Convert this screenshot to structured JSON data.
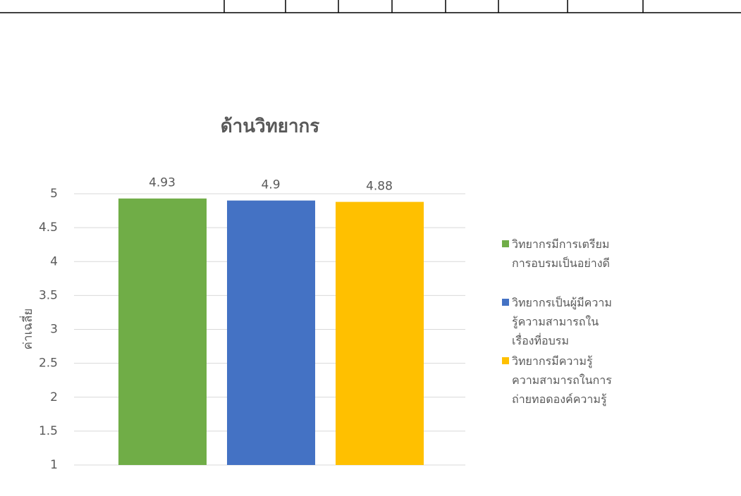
{
  "chart_data": {
    "type": "bar",
    "title": "ด้านวิทยากร",
    "y_label": "ค่าเฉลี่ย",
    "series": [
      {
        "name": "วิทยากรมีการเตรียมการอบรมเป็นอย่างดี",
        "color": "#70ad47",
        "values": [
          4.93
        ]
      },
      {
        "name": "วิทยากรเป็นผู้มีความรู้ความสามารถในเรื่องที่อบรม",
        "color": "#4472c4",
        "values": [
          4.9
        ]
      },
      {
        "name": "วิทยากรมีความรู้ความสามารถในการถ่ายทอดองค์ความรู้",
        "color": "#ffc000",
        "values": [
          4.88
        ]
      }
    ],
    "ylim": [
      1,
      5
    ],
    "yticks": [
      1,
      1.5,
      2,
      2.5,
      3,
      3.5,
      4,
      4.5,
      5
    ],
    "grid": true,
    "legend": "right"
  }
}
